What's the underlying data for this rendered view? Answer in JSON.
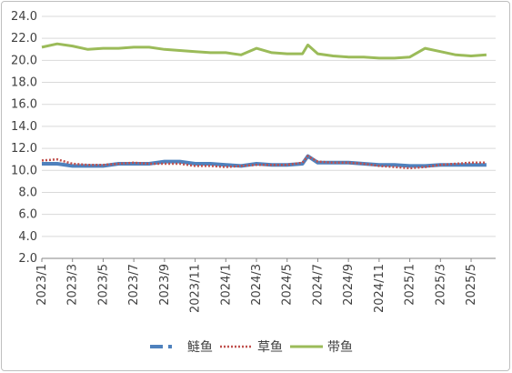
{
  "chart_data": {
    "type": "line",
    "title": "",
    "xlabel": "",
    "ylabel": "",
    "ylim": [
      2.0,
      24.0
    ],
    "y_ticks": [
      "2.0",
      "4.0",
      "6.0",
      "8.0",
      "10.0",
      "12.0",
      "14.0",
      "16.0",
      "18.0",
      "20.0",
      "22.0",
      "24.0"
    ],
    "x_tick_labels": [
      "2023/1",
      "2023/3",
      "2023/5",
      "2023/7",
      "2023/9",
      "2023/11",
      "2024/1",
      "2024/3",
      "2024/5",
      "2024/7",
      "2024/9",
      "2024/11",
      "2025/1",
      "2025/3",
      "2025/5"
    ],
    "grid": "horizontal",
    "legend_position": "bottom",
    "series": [
      {
        "name": "鲢鱼",
        "color": "#4f81bd",
        "style": "dashed",
        "points": [
          [
            "2023/1",
            10.6
          ],
          [
            "2023/2",
            10.6
          ],
          [
            "2023/3",
            10.4
          ],
          [
            "2023/4",
            10.4
          ],
          [
            "2023/5",
            10.4
          ],
          [
            "2023/6",
            10.6
          ],
          [
            "2023/7",
            10.6
          ],
          [
            "2023/8",
            10.6
          ],
          [
            "2023/9",
            10.8
          ],
          [
            "2023/10",
            10.8
          ],
          [
            "2023/11",
            10.6
          ],
          [
            "2023/12",
            10.6
          ],
          [
            "2024/1",
            10.5
          ],
          [
            "2024/2",
            10.4
          ],
          [
            "2024/3",
            10.6
          ],
          [
            "2024/4",
            10.5
          ],
          [
            "2024/5",
            10.5
          ],
          [
            "2024/6",
            10.6
          ],
          [
            "2024/6",
            11.3
          ],
          [
            "2024/7",
            10.7
          ],
          [
            "2024/8",
            10.7
          ],
          [
            "2024/9",
            10.7
          ],
          [
            "2024/10",
            10.6
          ],
          [
            "2024/11",
            10.5
          ],
          [
            "2024/12",
            10.5
          ],
          [
            "2025/1",
            10.4
          ],
          [
            "2025/2",
            10.4
          ],
          [
            "2025/3",
            10.5
          ],
          [
            "2025/4",
            10.5
          ],
          [
            "2025/5",
            10.5
          ],
          [
            "2025/6",
            10.5
          ]
        ]
      },
      {
        "name": "草鱼",
        "color": "#c0504d",
        "style": "dotted",
        "points": [
          [
            "2023/1",
            10.9
          ],
          [
            "2023/2",
            11.0
          ],
          [
            "2023/3",
            10.6
          ],
          [
            "2023/4",
            10.5
          ],
          [
            "2023/5",
            10.5
          ],
          [
            "2023/6",
            10.6
          ],
          [
            "2023/7",
            10.7
          ],
          [
            "2023/8",
            10.6
          ],
          [
            "2023/9",
            10.6
          ],
          [
            "2023/10",
            10.6
          ],
          [
            "2023/11",
            10.4
          ],
          [
            "2023/12",
            10.4
          ],
          [
            "2024/1",
            10.3
          ],
          [
            "2024/2",
            10.4
          ],
          [
            "2024/3",
            10.5
          ],
          [
            "2024/4",
            10.5
          ],
          [
            "2024/5",
            10.5
          ],
          [
            "2024/6",
            10.7
          ],
          [
            "2024/6",
            11.3
          ],
          [
            "2024/7",
            10.8
          ],
          [
            "2024/8",
            10.7
          ],
          [
            "2024/9",
            10.7
          ],
          [
            "2024/10",
            10.6
          ],
          [
            "2024/11",
            10.4
          ],
          [
            "2024/12",
            10.3
          ],
          [
            "2025/1",
            10.2
          ],
          [
            "2025/2",
            10.3
          ],
          [
            "2025/3",
            10.5
          ],
          [
            "2025/4",
            10.6
          ],
          [
            "2025/5",
            10.7
          ],
          [
            "2025/6",
            10.7
          ]
        ]
      },
      {
        "name": "带鱼",
        "color": "#9bbb59",
        "style": "solid",
        "points": [
          [
            "2023/1",
            21.2
          ],
          [
            "2023/2",
            21.5
          ],
          [
            "2023/3",
            21.3
          ],
          [
            "2023/4",
            21.0
          ],
          [
            "2023/5",
            21.1
          ],
          [
            "2023/6",
            21.1
          ],
          [
            "2023/7",
            21.2
          ],
          [
            "2023/8",
            21.2
          ],
          [
            "2023/9",
            21.0
          ],
          [
            "2023/10",
            20.9
          ],
          [
            "2023/11",
            20.8
          ],
          [
            "2023/12",
            20.7
          ],
          [
            "2024/1",
            20.7
          ],
          [
            "2024/2",
            20.5
          ],
          [
            "2024/3",
            21.1
          ],
          [
            "2024/4",
            20.7
          ],
          [
            "2024/5",
            20.6
          ],
          [
            "2024/6",
            20.6
          ],
          [
            "2024/6",
            21.4
          ],
          [
            "2024/7",
            20.6
          ],
          [
            "2024/8",
            20.4
          ],
          [
            "2024/9",
            20.3
          ],
          [
            "2024/10",
            20.3
          ],
          [
            "2024/11",
            20.2
          ],
          [
            "2024/12",
            20.2
          ],
          [
            "2025/1",
            20.3
          ],
          [
            "2025/2",
            21.1
          ],
          [
            "2025/3",
            20.8
          ],
          [
            "2025/4",
            20.5
          ],
          [
            "2025/5",
            20.4
          ],
          [
            "2025/6",
            20.5
          ]
        ]
      }
    ]
  }
}
